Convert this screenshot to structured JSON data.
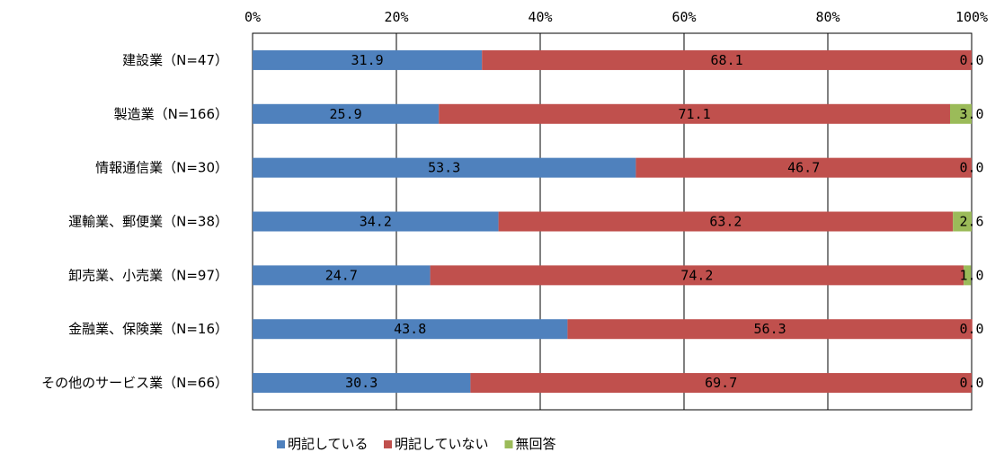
{
  "chart_data": {
    "type": "bar",
    "orientation": "horizontal",
    "stacked": true,
    "categories": [
      "建設業（N=47）",
      "製造業（N=166）",
      "情報通信業（N=30）",
      "運輸業、郵便業（N=38）",
      "卸売業、小売業（N=97）",
      "金融業、保険業（N=16）",
      "その他のサービス業（N=66）"
    ],
    "series": [
      {
        "name": "明記している",
        "color": "#4F81BD",
        "values": [
          31.9,
          25.9,
          53.3,
          34.2,
          24.7,
          43.8,
          30.3
        ],
        "labels": [
          "31.9",
          "25.9",
          "53.3",
          "34.2",
          "24.7",
          "43.8",
          "30.3"
        ]
      },
      {
        "name": "明記していない",
        "color": "#C0504D",
        "values": [
          68.1,
          71.1,
          46.7,
          63.2,
          74.2,
          56.3,
          69.7
        ],
        "labels": [
          "68.1",
          "71.1",
          "46.7",
          "63.2",
          "74.2",
          "56.3",
          "69.7"
        ]
      },
      {
        "name": "無回答",
        "color": "#9BBB59",
        "values": [
          0.0,
          3.0,
          0.0,
          2.6,
          1.0,
          0.0,
          0.0
        ],
        "labels": [
          "0.0",
          "3.0",
          "0.0",
          "2.6",
          "1.0",
          "0.0",
          "0.0"
        ]
      }
    ],
    "x_ticks": [
      "0%",
      "20%",
      "40%",
      "60%",
      "80%",
      "100%"
    ],
    "xlim": [
      0,
      100
    ],
    "title": "",
    "xlabel": "",
    "ylabel": "",
    "grid": true,
    "legend": "bottom"
  }
}
